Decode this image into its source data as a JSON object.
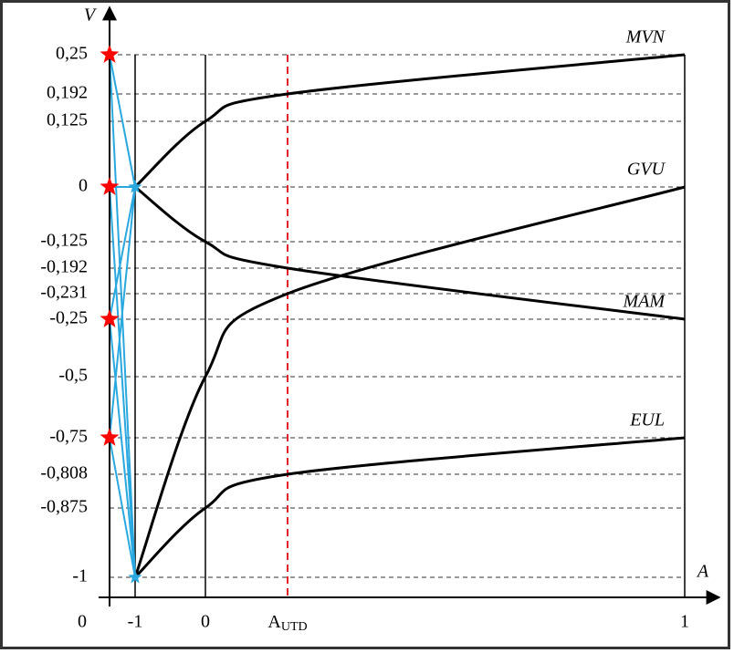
{
  "chart_data": {
    "type": "line",
    "y_label": "V",
    "x_label": "A",
    "categories": [
      "0",
      "-1",
      "0",
      "A",
      "1"
    ],
    "category_subscript": "UTD",
    "series": [
      {
        "name": "MVN",
        "color": "#000000",
        "values": [
          null,
          0,
          0.125,
          0.192,
          0.25
        ]
      },
      {
        "name": "GVU",
        "color": "#000000",
        "values": [
          null,
          -1,
          -0.5,
          -0.231,
          0
        ]
      },
      {
        "name": "MAM",
        "color": "#000000",
        "values": [
          null,
          0,
          -0.125,
          -0.192,
          -0.25
        ]
      },
      {
        "name": "EUL",
        "color": "#000000",
        "values": [
          null,
          -1,
          -0.875,
          -0.808,
          -0.75
        ]
      }
    ],
    "ylim": [
      -1,
      0.25
    ],
    "yticks": [
      {
        "value": 0.25,
        "label": "0,25"
      },
      {
        "value": 0.192,
        "label": "0,192"
      },
      {
        "value": 0.125,
        "label": "0,125"
      },
      0,
      {
        "value": -0.125,
        "label": "-0,125"
      },
      {
        "value": -0.192,
        "label": "-0,192"
      },
      {
        "value": -0.231,
        "label": "-0,231"
      },
      {
        "value": -0.25,
        "label": "-0,25"
      },
      {
        "value": -0.5,
        "label": "-0,5"
      },
      {
        "value": -0.75,
        "label": "-0,75"
      },
      {
        "value": -0.808,
        "label": "-0,808"
      },
      {
        "value": -0.875,
        "label": "-0,875"
      },
      -1
    ],
    "star_values": [
      0.25,
      0,
      -0.25,
      -0.75
    ],
    "star_color": "#ff0000",
    "link_color": "#29a8e0",
    "marker_line_color": "#e8202a",
    "grid": true
  }
}
